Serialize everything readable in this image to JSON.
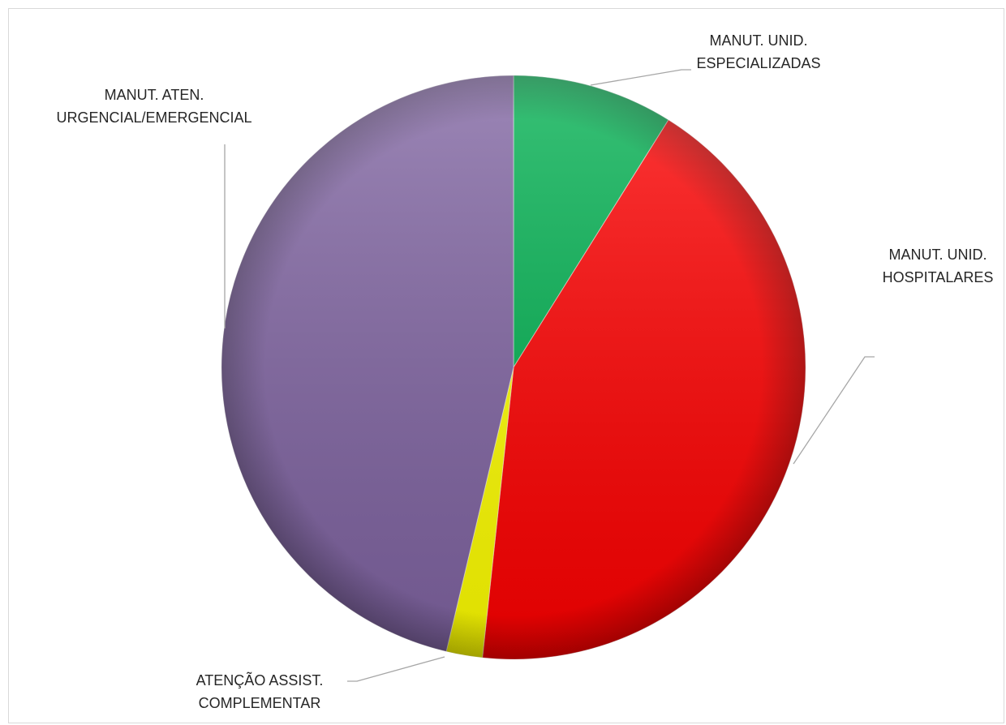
{
  "chart_data": {
    "type": "pie",
    "title": "",
    "start_angle_deg": 0,
    "direction": "clockwise",
    "slices": [
      {
        "label_lines": [
          "MANUT. UNID.",
          "ESPECIALIZADAS"
        ],
        "value": 8.9,
        "color": "#00b050"
      },
      {
        "label_lines": [
          "MANUT. UNID.",
          "HOSPITALARES"
        ],
        "value": 42.8,
        "color": "#ff0000"
      },
      {
        "label_lines": [
          "ATENÇÃO ASSIST.",
          "COMPLEMENTAR"
        ],
        "value": 2.0,
        "color": "#ffff00"
      },
      {
        "label_lines": [
          "MANUT. ATEN.",
          "URGENCIAL/EMERGENCIAL"
        ],
        "value": 46.3,
        "color": "#8064a2"
      }
    ],
    "legend": "none",
    "labels": "outside with leader lines"
  }
}
